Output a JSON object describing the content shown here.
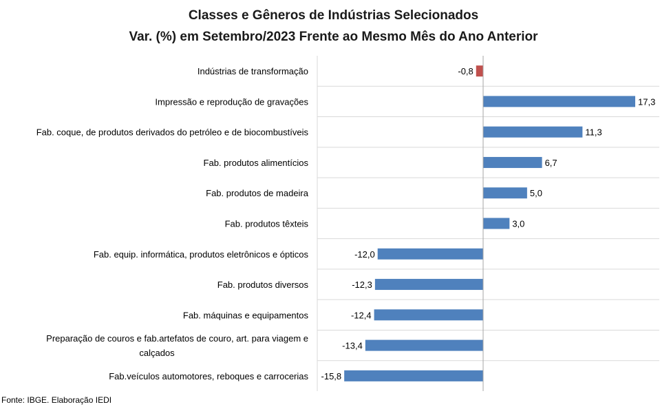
{
  "chart_data": {
    "type": "bar",
    "orientation": "horizontal",
    "title": "Classes e Gêneros de Indústrias Selecionados",
    "subtitle": "Var. (%) em Setembro/2023 Frente ao Mesmo Mês do Ano Anterior",
    "categories": [
      [
        "Indústrias de transformação"
      ],
      [
        "Impressão e reprodução de gravações"
      ],
      [
        "Fab. coque, de produtos derivados do petróleo e de biocombustíveis"
      ],
      [
        "Fab. produtos alimentícios"
      ],
      [
        "Fab. produtos de madeira"
      ],
      [
        "Fab. produtos têxteis"
      ],
      [
        "Fab. equip. informática, produtos eletrônicos e ópticos"
      ],
      [
        "Fab. produtos diversos"
      ],
      [
        "Fab. máquinas e equipamentos"
      ],
      [
        "Preparação de couros e fab.artefatos de couro, art. para viagem e",
        "calçados"
      ],
      [
        "Fab.veículos automotores, reboques e carrocerias"
      ]
    ],
    "values": [
      -0.8,
      17.3,
      11.3,
      6.7,
      5.0,
      3.0,
      -12.0,
      -12.3,
      -12.4,
      -13.4,
      -15.8
    ],
    "value_labels": [
      "-0,8",
      "17,3",
      "11,3",
      "6,7",
      "5,0",
      "3,0",
      "-12,0",
      "-12,3",
      "-12,4",
      "-13,4",
      "-15,8"
    ],
    "bar_colors": [
      "#C0504D",
      "#4F81BD",
      "#4F81BD",
      "#4F81BD",
      "#4F81BD",
      "#4F81BD",
      "#4F81BD",
      "#4F81BD",
      "#4F81BD",
      "#4F81BD",
      "#4F81BD"
    ],
    "xlim": [
      -20,
      20
    ],
    "grid": "horizontal category separators",
    "source": "Fonte: IBGE. Elaboração IEDI"
  }
}
